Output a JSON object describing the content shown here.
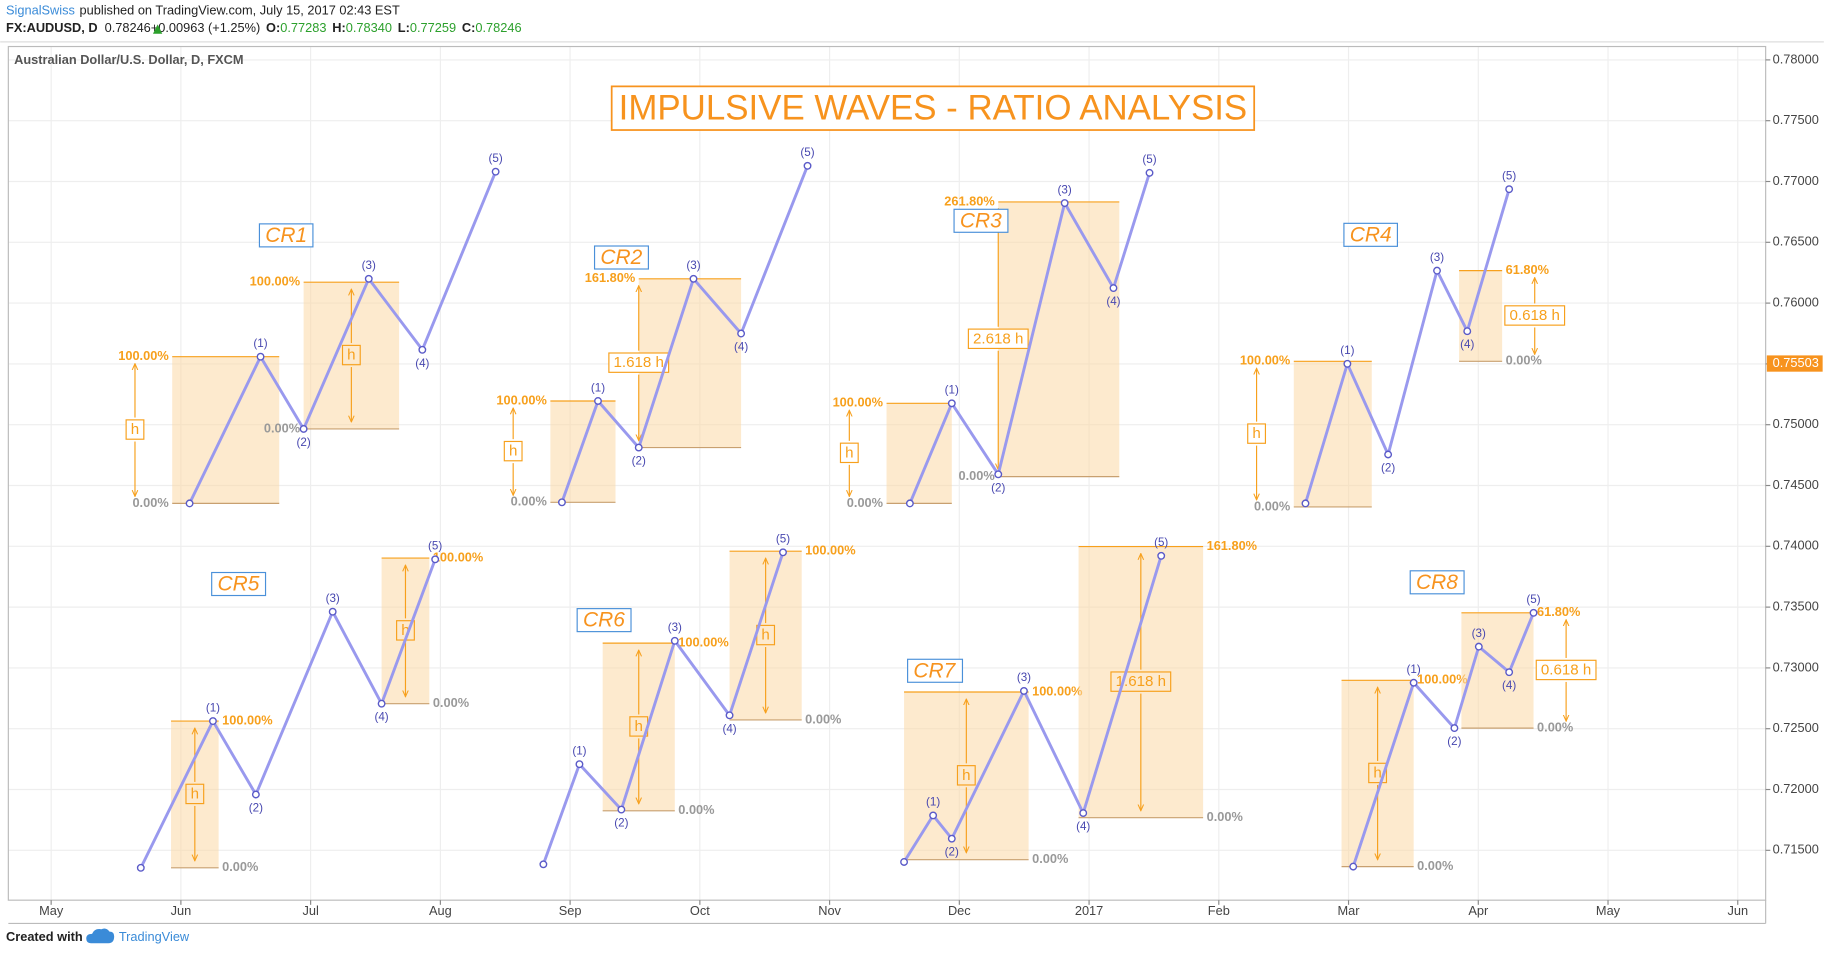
{
  "header": {
    "author": "SignalSwiss",
    "published": "published on TradingView.com, July 15, 2017 02:43 EST",
    "symbol": "FX:AUDUSD, D",
    "last": "0.78246",
    "change": "+0.00963 (+1.25%)",
    "ohlc": [
      {
        "label": "O:",
        "value": "0.77283"
      },
      {
        "label": "H:",
        "value": "0.78340"
      },
      {
        "label": "L:",
        "value": "0.77259"
      },
      {
        "label": "C:",
        "value": "0.78246"
      }
    ]
  },
  "footer": {
    "created": "Created with",
    "brand": "TradingView"
  },
  "chart_data": {
    "type": "line",
    "title": "IMPULSIVE WAVES - RATIO ANALYSIS",
    "instrument": "Australian Dollar/U.S. Dollar, D, FXCM",
    "grid": true,
    "last_price": 0.75503,
    "xlim": [
      -0.33,
      13.215
    ],
    "xticks": [
      {
        "value": 0,
        "label": "May"
      },
      {
        "value": 1,
        "label": "Jun"
      },
      {
        "value": 2,
        "label": "Jul"
      },
      {
        "value": 3,
        "label": "Aug"
      },
      {
        "value": 4,
        "label": "Sep"
      },
      {
        "value": 5,
        "label": "Oct"
      },
      {
        "value": 6,
        "label": "Nov"
      },
      {
        "value": 7,
        "label": "Dec"
      },
      {
        "value": 8,
        "label": "2017"
      },
      {
        "value": 9,
        "label": "Feb"
      },
      {
        "value": 10,
        "label": "Mar"
      },
      {
        "value": 11,
        "label": "Apr"
      },
      {
        "value": 12,
        "label": "May"
      },
      {
        "value": 13,
        "label": "Jun"
      }
    ],
    "ylim": [
      0.7109,
      0.7811
    ],
    "yticks": [
      {
        "value": 0.715,
        "label": "0.71500"
      },
      {
        "value": 0.72,
        "label": "0.72000"
      },
      {
        "value": 0.725,
        "label": "0.72500"
      },
      {
        "value": 0.73,
        "label": "0.73000"
      },
      {
        "value": 0.735,
        "label": "0.73500"
      },
      {
        "value": 0.74,
        "label": "0.74000"
      },
      {
        "value": 0.745,
        "label": "0.74500"
      },
      {
        "value": 0.75,
        "label": "0.75000"
      },
      {
        "value": 0.755,
        "label": "0.75500"
      },
      {
        "value": 0.76,
        "label": "0.76000"
      },
      {
        "value": 0.765,
        "label": "0.76500"
      },
      {
        "value": 0.77,
        "label": "0.77000"
      },
      {
        "value": 0.775,
        "label": "0.77500"
      },
      {
        "value": 0.78,
        "label": "0.78000"
      }
    ],
    "series": [
      {
        "name": "CR1",
        "color": "#9999ee",
        "x": [
          1.067,
          1.614,
          1.946,
          2.448,
          2.861,
          3.426
        ],
        "values": [
          0.74353,
          0.75559,
          0.74965,
          0.762,
          0.75616,
          0.77081
        ],
        "point_labels": [
          null,
          "(1)",
          "(2)",
          "(3)",
          "(4)",
          "(5)"
        ],
        "boxes": [
          {
            "x": [
              0.933,
              1.758
            ],
            "top": 0.75559,
            "bottom": 0.74353,
            "top_label": "100.00%",
            "bottom_label": "0.00%",
            "h_label": "h",
            "label_side": "left",
            "h_pos": "left"
          },
          {
            "x": [
              1.946,
              2.682
            ],
            "top": 0.76172,
            "bottom": 0.74965,
            "top_label": "100.00%",
            "bottom_label": "0.00%",
            "h_label": "h",
            "label_side": "left",
            "h_pos": "inside"
          }
        ]
      },
      {
        "name": "CR2",
        "color": "#9999ee",
        "x": [
          3.937,
          4.215,
          4.529,
          4.951,
          5.318,
          5.83
        ],
        "values": [
          0.74362,
          0.75195,
          0.74812,
          0.762,
          0.7575,
          0.77129
        ],
        "point_labels": [
          null,
          "(1)",
          "(2)",
          "(3)",
          "(4)",
          "(5)"
        ],
        "boxes": [
          {
            "x": [
              3.848,
              4.35
            ],
            "top": 0.75195,
            "bottom": 0.74362,
            "top_label": "100.00%",
            "bottom_label": "0.00%",
            "h_label": "h",
            "label_side": "left",
            "h_pos": "left"
          },
          {
            "x": [
              4.529,
              5.318
            ],
            "top": 0.762,
            "bottom": 0.74812,
            "top_label": "161.80%",
            "bottom_label": null,
            "h_label": "1.618 h",
            "label_side": "left",
            "h_pos": "edge"
          }
        ]
      },
      {
        "name": "CR3",
        "color": "#9999ee",
        "x": [
          6.619,
          6.942,
          7.3,
          7.812,
          8.188,
          8.466
        ],
        "values": [
          0.74353,
          0.75176,
          0.74592,
          0.76823,
          0.76124,
          0.77071
        ],
        "point_labels": [
          null,
          "(1)",
          "(2)",
          "(3)",
          "(4)",
          "(5)"
        ],
        "boxes": [
          {
            "x": [
              6.439,
              6.942
            ],
            "top": 0.75176,
            "bottom": 0.74353,
            "top_label": "100.00%",
            "bottom_label": "0.00%",
            "h_label": "h",
            "label_side": "left",
            "h_pos": "left"
          },
          {
            "x": [
              7.3,
              8.233
            ],
            "top": 0.76832,
            "bottom": 0.74573,
            "top_label": "261.80%",
            "bottom_label": "0.00%",
            "h_label": "2.618 h",
            "label_side": "left",
            "h_pos": "edge"
          }
        ]
      },
      {
        "name": "CR4",
        "color": "#9999ee",
        "x": [
          9.668,
          9.991,
          10.305,
          10.682,
          10.915,
          11.238
        ],
        "values": [
          0.74353,
          0.75501,
          0.74755,
          0.76267,
          0.75769,
          0.76937
        ],
        "point_labels": [
          null,
          "(1)",
          "(2)",
          "(3)",
          "(4)",
          "(5)"
        ],
        "boxes": [
          {
            "x": [
              9.578,
              10.179
            ],
            "top": 0.75521,
            "bottom": 0.74324,
            "top_label": "100.00%",
            "bottom_label": "0.00%",
            "h_label": "h",
            "label_side": "left",
            "h_pos": "left"
          },
          {
            "x": [
              10.852,
              11.184
            ],
            "top": 0.76267,
            "bottom": 0.75521,
            "top_label": "61.80%",
            "bottom_label": "0.00%",
            "h_label": "0.618 h",
            "label_side": "right",
            "h_pos": "right"
          }
        ]
      },
      {
        "name": "CR5",
        "color": "#9999ee",
        "x": [
          0.691,
          1.247,
          1.578,
          2.17,
          2.547,
          2.96
        ],
        "values": [
          0.71356,
          0.72563,
          0.71959,
          0.73462,
          0.72706,
          0.73893
        ],
        "point_labels": [
          null,
          "(1)",
          "(2)",
          "(3)",
          "(4)",
          "(5)"
        ],
        "boxes": [
          {
            "x": [
              0.924,
              1.291
            ],
            "top": 0.72563,
            "bottom": 0.71356,
            "top_label": "100.00%",
            "bottom_label": "0.00%",
            "h_label": "h",
            "label_side": "right",
            "h_pos": "inside"
          },
          {
            "x": [
              2.547,
              2.915
            ],
            "top": 0.73903,
            "bottom": 0.72706,
            "top_label": "100.00%",
            "bottom_label": "0.00%",
            "h_label": "h",
            "label_side": "right",
            "h_pos": "inside"
          }
        ]
      },
      {
        "name": "CR6",
        "color": "#9999ee",
        "x": [
          3.794,
          4.072,
          4.395,
          4.807,
          5.229,
          5.641
        ],
        "values": [
          0.71385,
          0.72208,
          0.71835,
          0.73223,
          0.7261,
          0.73951
        ],
        "point_labels": [
          null,
          "(1)",
          "(2)",
          "(3)",
          "(4)",
          "(5)"
        ],
        "boxes": [
          {
            "x": [
              4.251,
              4.807
            ],
            "top": 0.73204,
            "bottom": 0.71825,
            "top_label": "100.00%",
            "bottom_label": "0.00%",
            "h_label": "h",
            "label_side": "right",
            "h_pos": "inside"
          },
          {
            "x": [
              5.229,
              5.785
            ],
            "top": 0.7396,
            "bottom": 0.72572,
            "top_label": "100.00%",
            "bottom_label": "0.00%",
            "h_label": "h",
            "label_side": "right",
            "h_pos": "inside"
          }
        ]
      },
      {
        "name": "CR7",
        "color": "#9999ee",
        "x": [
          6.574,
          6.798,
          6.942,
          7.498,
          7.955,
          8.556
        ],
        "values": [
          0.71404,
          0.71787,
          0.71596,
          0.72811,
          0.71806,
          0.73922
        ],
        "point_labels": [
          null,
          "(1)",
          "(2)",
          "(3)",
          "(4)",
          "(5)"
        ],
        "boxes": [
          {
            "x": [
              6.574,
              7.534
            ],
            "top": 0.72802,
            "bottom": 0.71423,
            "top_label": "100.00%",
            "bottom_label": "0.00%",
            "h_label": "h",
            "label_side": "right",
            "h_pos": "inside"
          },
          {
            "x": [
              7.919,
              8.879
            ],
            "top": 0.73998,
            "bottom": 0.71768,
            "top_label": "161.80%",
            "bottom_label": "0.00%",
            "h_label": "1.618 h",
            "label_side": "right",
            "h_pos": "inside"
          }
        ]
      },
      {
        "name": "CR8",
        "color": "#9999ee",
        "x": [
          10.036,
          10.502,
          10.816,
          11.004,
          11.238,
          11.426
        ],
        "values": [
          0.71366,
          0.72878,
          0.72505,
          0.73175,
          0.72965,
          0.73453
        ],
        "point_labels": [
          null,
          "(1)",
          "(2)",
          "(3)",
          "(4)",
          "(5)"
        ],
        "boxes": [
          {
            "x": [
              9.946,
              10.502
            ],
            "top": 0.72898,
            "bottom": 0.71366,
            "top_label": "100.00%",
            "bottom_label": "0.00%",
            "h_label": "h",
            "label_side": "right",
            "h_pos": "inside"
          },
          {
            "x": [
              10.87,
              11.426
            ],
            "top": 0.73453,
            "bottom": 0.72505,
            "top_label": "61.80%",
            "bottom_label": "0.00%",
            "h_label": "0.618 h",
            "label_side": "right",
            "h_pos": "right"
          }
        ]
      }
    ]
  }
}
